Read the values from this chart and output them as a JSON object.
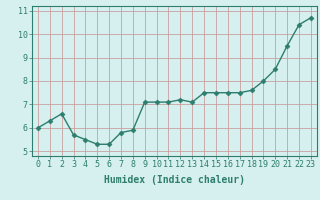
{
  "x": [
    0,
    1,
    2,
    3,
    4,
    5,
    6,
    7,
    8,
    9,
    10,
    11,
    12,
    13,
    14,
    15,
    16,
    17,
    18,
    19,
    20,
    21,
    22,
    23
  ],
  "y": [
    6.0,
    6.3,
    6.6,
    5.7,
    5.5,
    5.3,
    5.3,
    5.8,
    5.9,
    7.1,
    7.1,
    7.1,
    7.2,
    7.1,
    7.5,
    7.5,
    7.5,
    7.5,
    7.6,
    8.0,
    8.5,
    9.5,
    10.4,
    10.7
  ],
  "line_color": "#2e7d6e",
  "marker": "D",
  "marker_size": 2.5,
  "bg_color": "#d5f0ee",
  "grid_color": "#c8a0a0",
  "xlabel": "Humidex (Indice chaleur)",
  "xlabel_fontsize": 7,
  "tick_fontsize": 6,
  "ylim": [
    4.8,
    11.2
  ],
  "xlim": [
    -0.5,
    23.5
  ],
  "yticks": [
    5,
    6,
    7,
    8,
    9,
    10,
    11
  ],
  "xticks": [
    0,
    1,
    2,
    3,
    4,
    5,
    6,
    7,
    8,
    9,
    10,
    11,
    12,
    13,
    14,
    15,
    16,
    17,
    18,
    19,
    20,
    21,
    22,
    23
  ]
}
